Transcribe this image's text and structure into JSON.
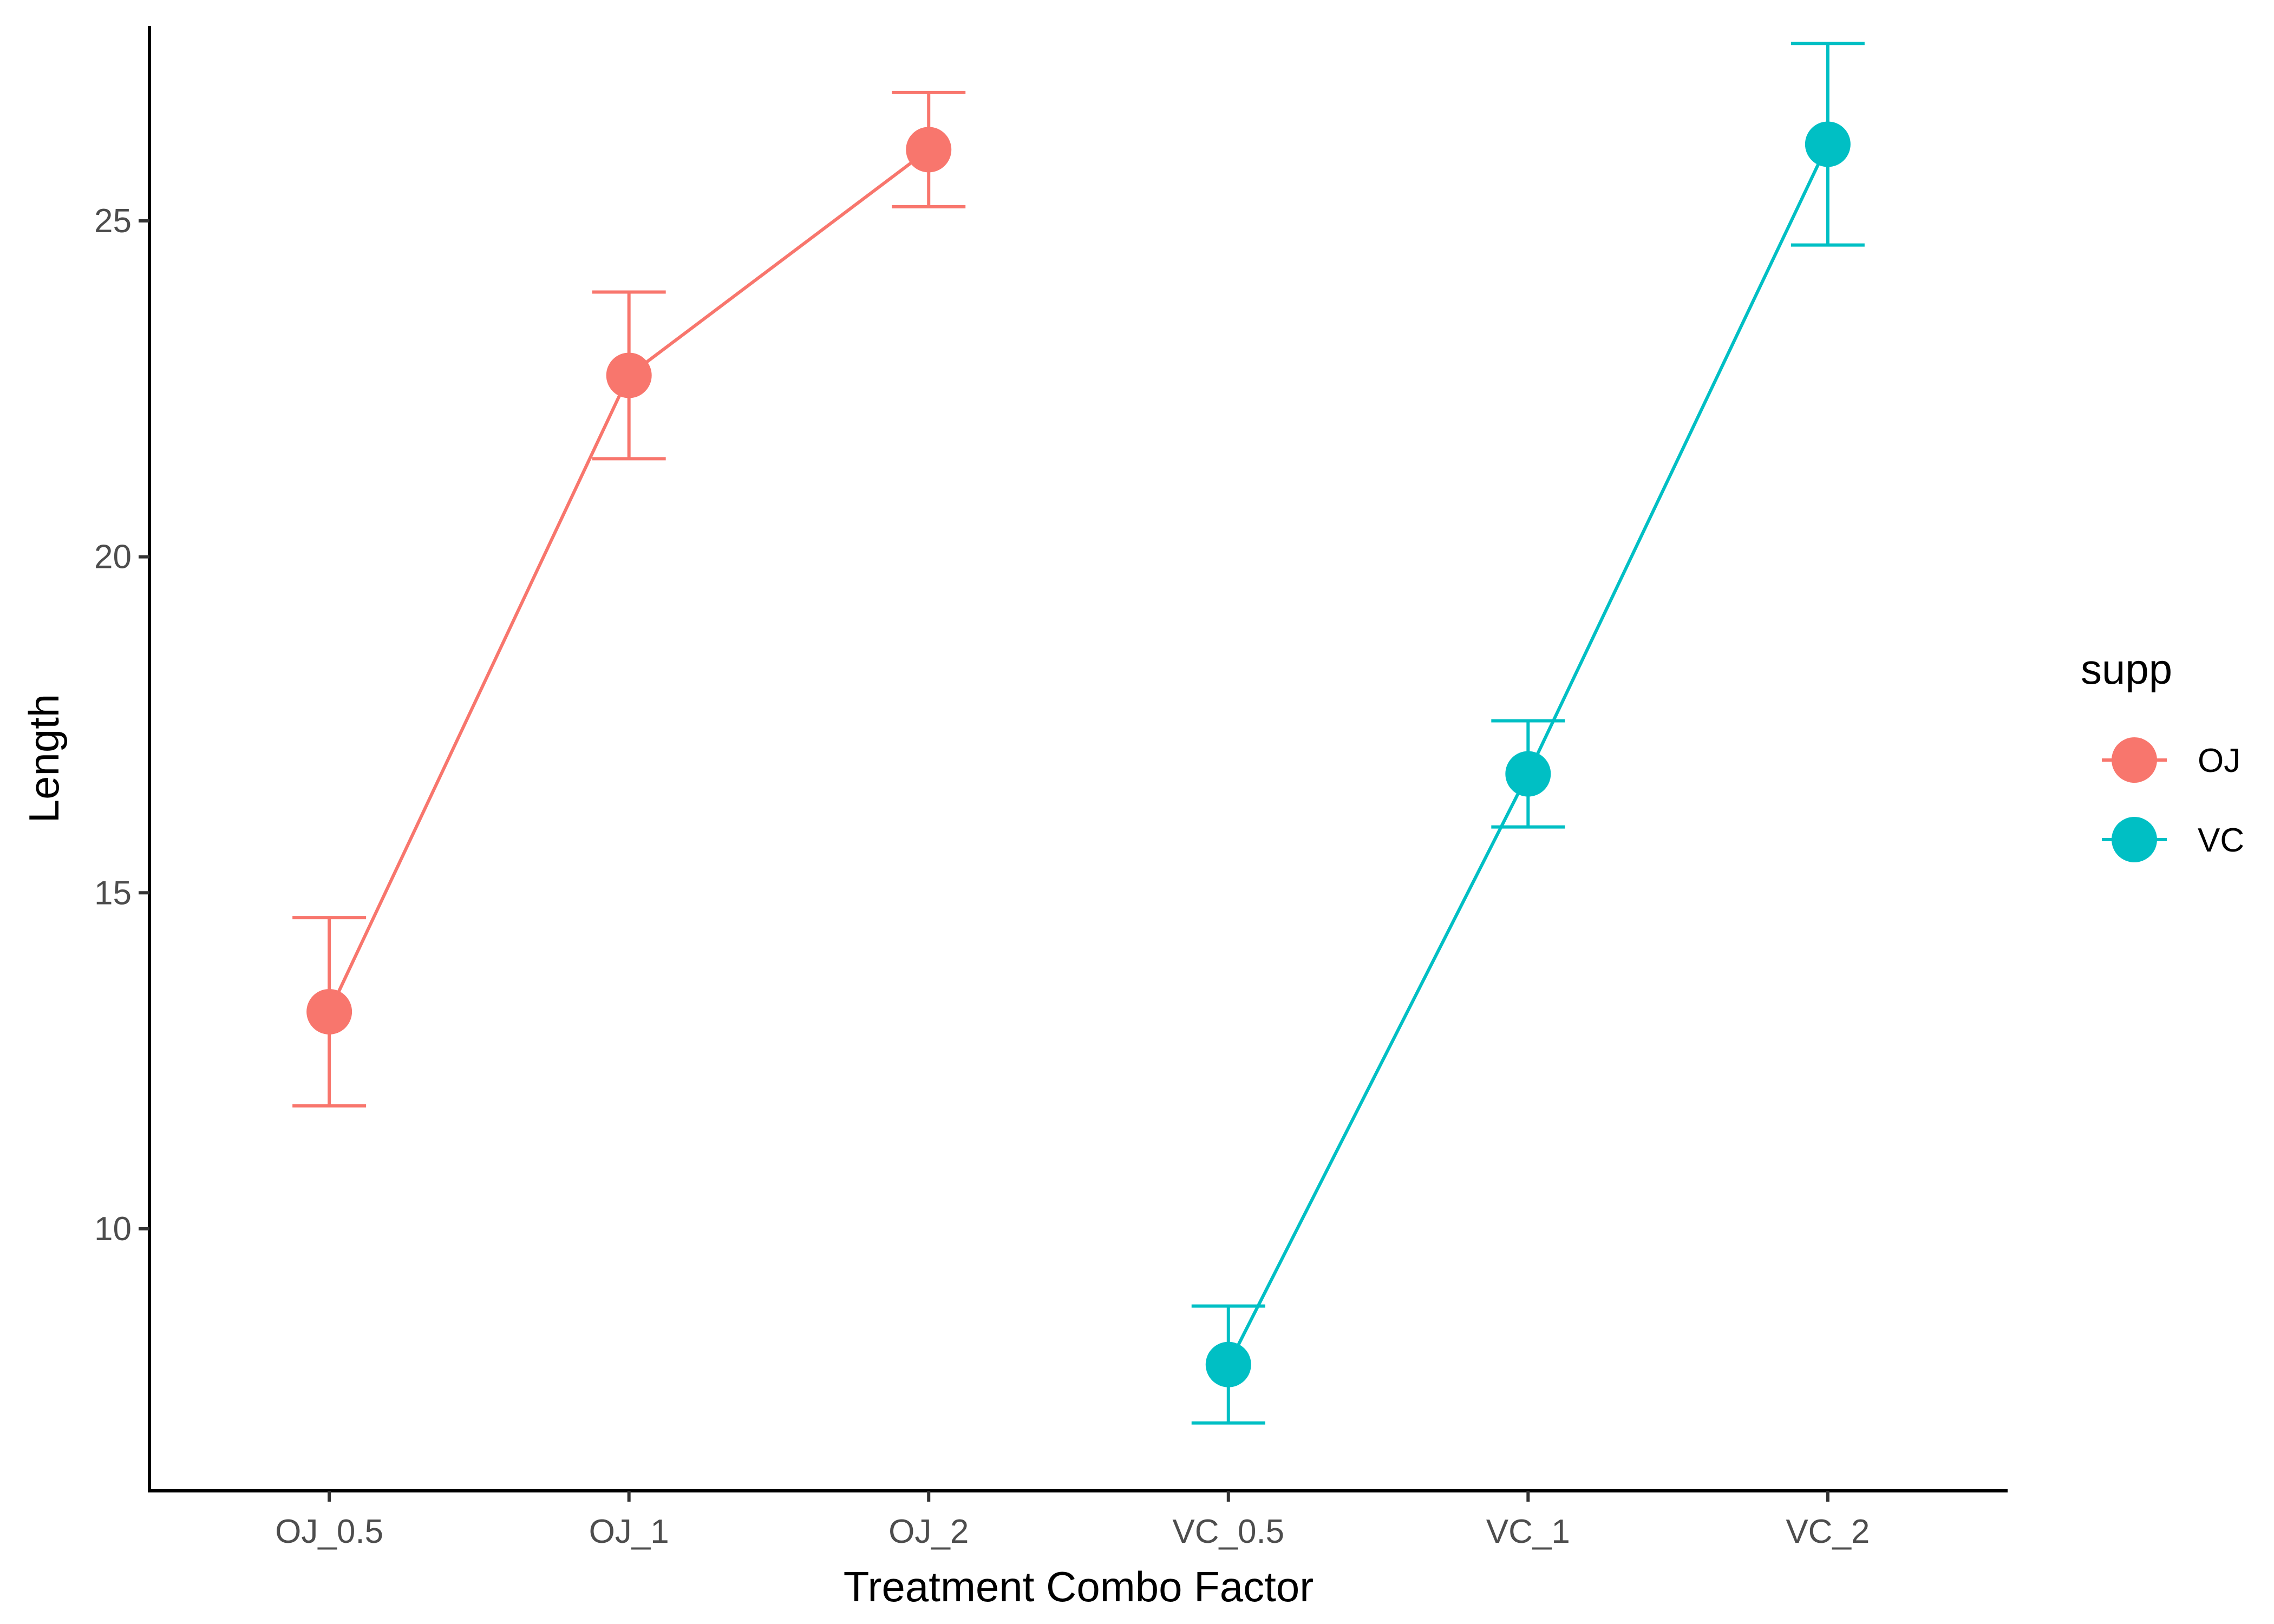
{
  "chart_data": {
    "type": "line",
    "xlabel": "Treatment Combo Factor",
    "ylabel": "Length",
    "categories": [
      "OJ_0.5",
      "OJ_1",
      "OJ_2",
      "VC_0.5",
      "VC_1",
      "VC_2"
    ],
    "ylim": [
      6.1,
      27.9
    ],
    "yticks": [
      10,
      15,
      20,
      25
    ],
    "grid": false,
    "legend": {
      "title": "supp",
      "position": "right"
    },
    "series": [
      {
        "name": "OJ",
        "color": "#F8766D",
        "points": [
          {
            "x": "OJ_0.5",
            "y": 13.23,
            "ymin": 11.83,
            "ymax": 14.63
          },
          {
            "x": "OJ_1",
            "y": 22.7,
            "ymin": 21.46,
            "ymax": 23.94
          },
          {
            "x": "OJ_2",
            "y": 26.06,
            "ymin": 25.21,
            "ymax": 26.91
          }
        ]
      },
      {
        "name": "VC",
        "color": "#00BFC4",
        "points": [
          {
            "x": "VC_0.5",
            "y": 7.98,
            "ymin": 7.11,
            "ymax": 8.85
          },
          {
            "x": "VC_1",
            "y": 16.77,
            "ymin": 15.98,
            "ymax": 17.56
          },
          {
            "x": "VC_2",
            "y": 26.14,
            "ymin": 24.64,
            "ymax": 27.64
          }
        ]
      }
    ]
  }
}
